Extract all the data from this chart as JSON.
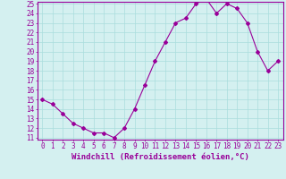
{
  "x": [
    0,
    1,
    2,
    3,
    4,
    5,
    6,
    7,
    8,
    9,
    10,
    11,
    12,
    13,
    14,
    15,
    16,
    17,
    18,
    19,
    20,
    21,
    22,
    23
  ],
  "y": [
    15.0,
    14.5,
    13.5,
    12.5,
    12.0,
    11.5,
    11.5,
    11.0,
    12.0,
    14.0,
    16.5,
    19.0,
    21.0,
    23.0,
    23.5,
    25.0,
    25.5,
    24.0,
    25.0,
    24.5,
    23.0,
    20.0,
    18.0,
    19.0
  ],
  "line_color": "#990099",
  "marker": "D",
  "marker_size": 2,
  "bg_color": "#d4f0f0",
  "grid_color": "#aadddd",
  "xlabel": "Windchill (Refroidissement éolien,°C)",
  "ylim": [
    11,
    25
  ],
  "xlim": [
    -0.5,
    23.5
  ],
  "yticks": [
    11,
    12,
    13,
    14,
    15,
    16,
    17,
    18,
    19,
    20,
    21,
    22,
    23,
    24,
    25
  ],
  "xticks": [
    0,
    1,
    2,
    3,
    4,
    5,
    6,
    7,
    8,
    9,
    10,
    11,
    12,
    13,
    14,
    15,
    16,
    17,
    18,
    19,
    20,
    21,
    22,
    23
  ],
  "tick_color": "#990099",
  "label_color": "#990099",
  "spine_color": "#990099",
  "xlabel_fontsize": 6.5,
  "tick_fontsize": 5.5
}
